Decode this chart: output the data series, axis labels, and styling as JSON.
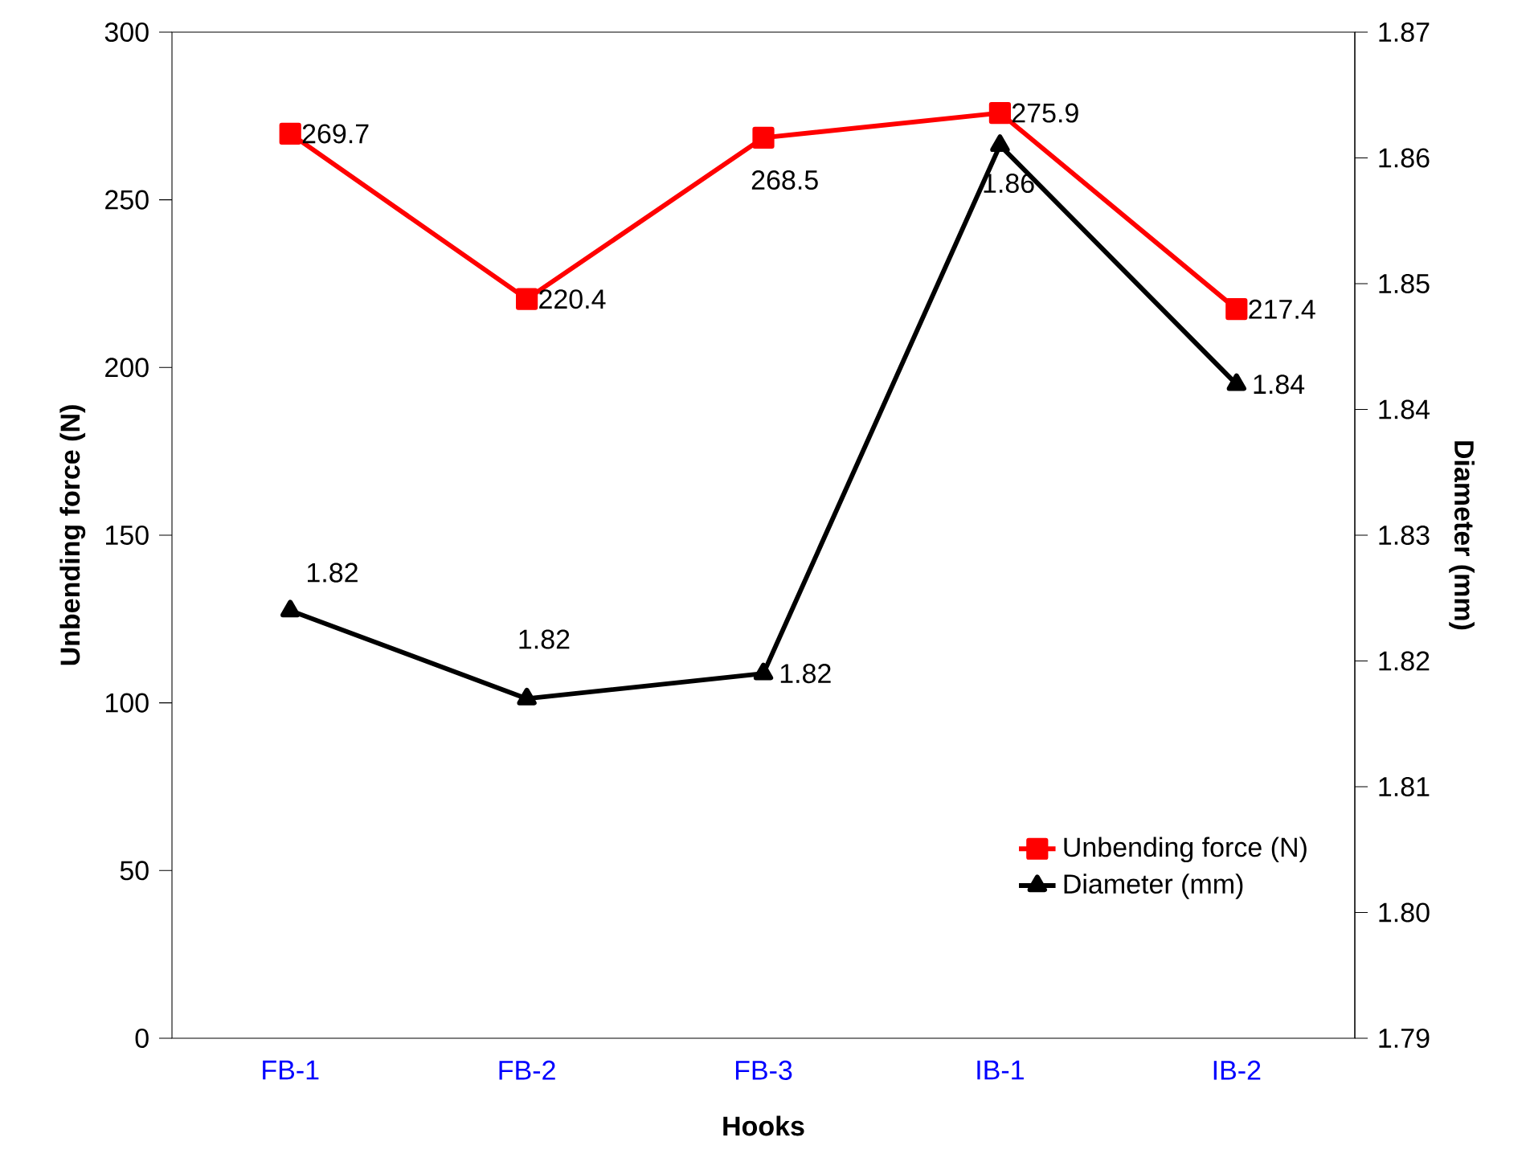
{
  "chart_data": {
    "type": "line",
    "xlabel": "Hooks",
    "ylabel": "Unbending force (N)",
    "y2label": "Diameter (mm)",
    "categories": [
      "FB-1",
      "FB-2",
      "FB-3",
      "IB-1",
      "IB-2"
    ],
    "series": [
      {
        "name": "Unbending force (N)",
        "color": "#ff0000",
        "marker": "square",
        "values": [
          269.7,
          220.4,
          268.5,
          275.9,
          217.4
        ],
        "value_labels": [
          "269.7",
          "220.4",
          "268.5",
          "275.9",
          "217.4"
        ]
      },
      {
        "name": "Diameter (mm)",
        "color": "#000000",
        "marker": "triangle",
        "axis": "y2",
        "values": [
          1.824,
          1.817,
          1.819,
          1.861,
          1.842
        ],
        "value_labels": [
          "1.82",
          "1.82",
          "1.82",
          "1.86",
          "1.84"
        ]
      }
    ],
    "ylim": [
      0,
      300
    ],
    "yticks": [
      0,
      50,
      100,
      150,
      200,
      250,
      300
    ],
    "y2lim": [
      1.79,
      1.87
    ],
    "y2ticks": [
      1.79,
      {
        "value": 1.8,
        "label": "1.80"
      },
      1.81,
      1.82,
      1.83,
      1.84,
      1.85,
      1.86,
      1.87
    ],
    "legend": "bottom right",
    "grid": false
  }
}
